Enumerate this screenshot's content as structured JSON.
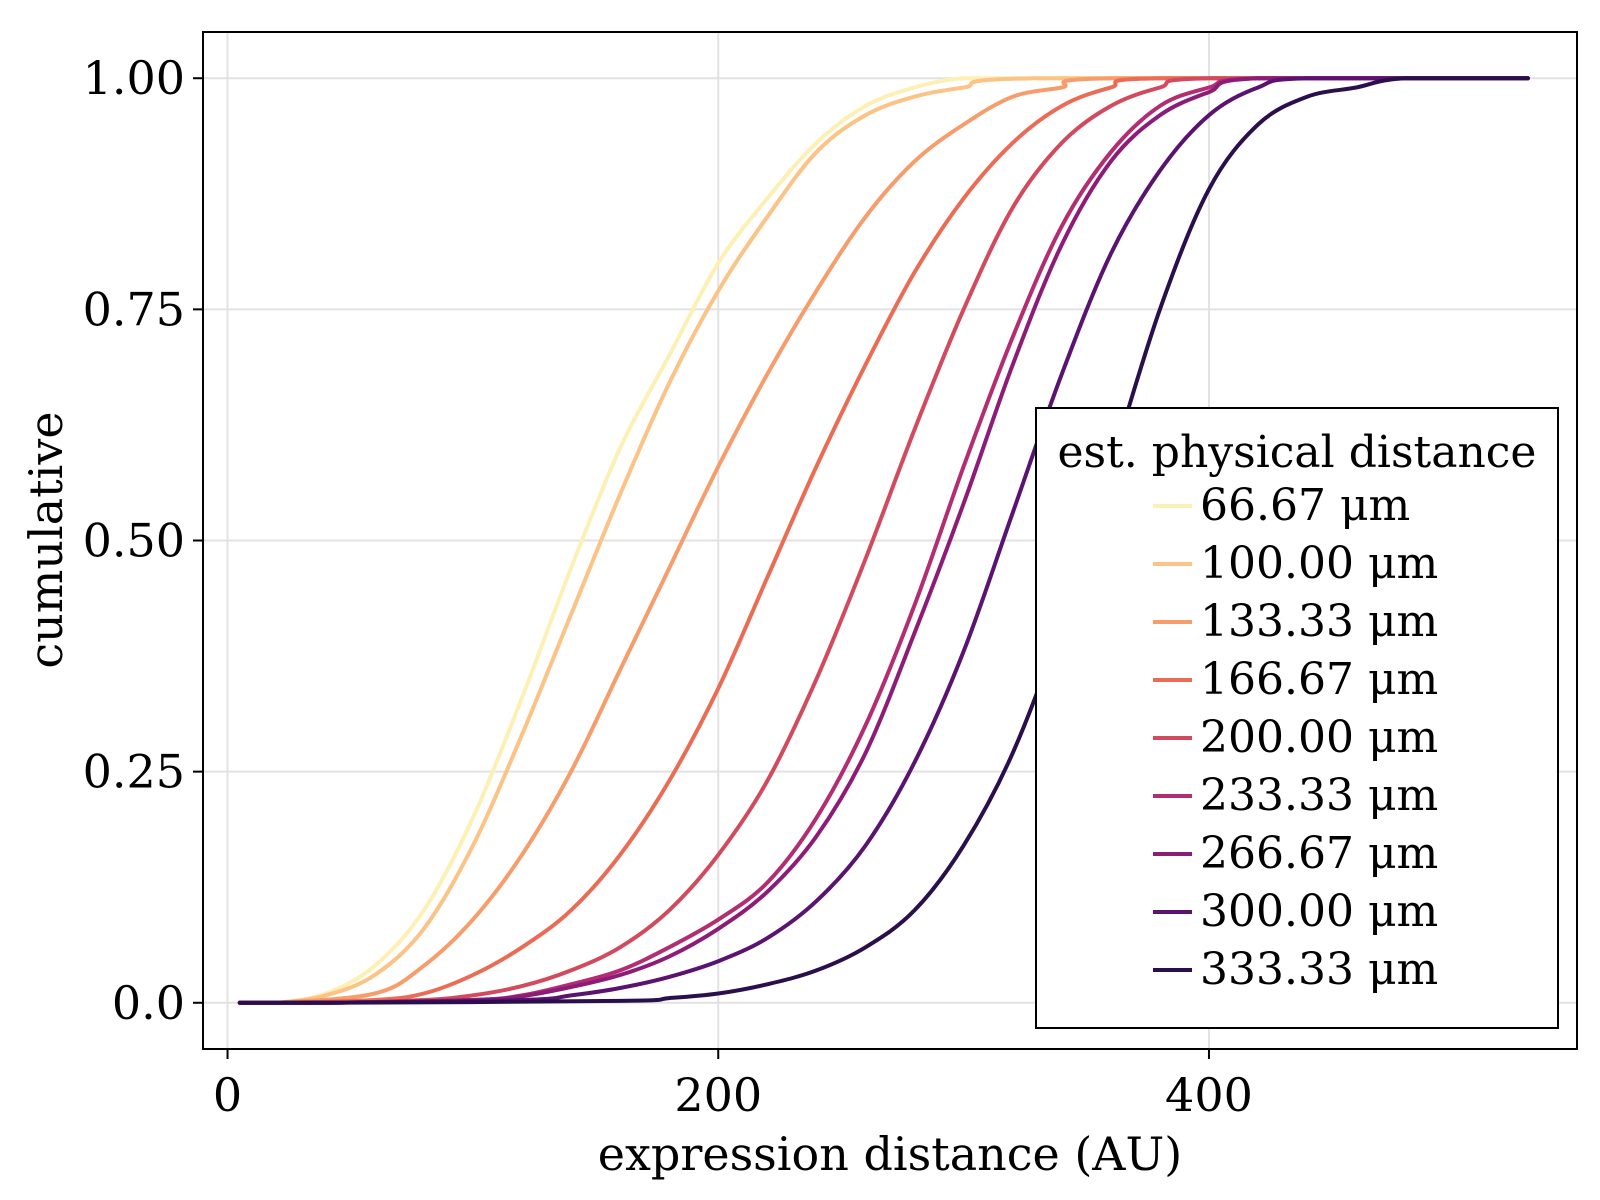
{
  "chart_data": {
    "type": "line",
    "title": "",
    "xlabel": "expression distance (AU)",
    "ylabel": "cumulative",
    "xlim": [
      -10,
      550
    ],
    "ylim": [
      -0.05,
      1.05
    ],
    "x_ticks": [
      0,
      200,
      400
    ],
    "x_tick_labels": [
      "0",
      "200",
      "400"
    ],
    "y_ticks": [
      0.0,
      0.25,
      0.5,
      0.75,
      1.0
    ],
    "y_tick_labels": [
      "0.0",
      "0.25",
      "0.50",
      "0.75",
      "1.00"
    ],
    "grid": true,
    "legend": {
      "title": "est. physical distance",
      "placement": "bottom-right"
    },
    "series": [
      {
        "name": "66.67 μm",
        "color": "#fcf0b4",
        "x_start": 5,
        "x_end": 530,
        "points": [
          [
            20,
            0.0
          ],
          [
            40,
            0.01
          ],
          [
            60,
            0.04
          ],
          [
            80,
            0.1
          ],
          [
            100,
            0.2
          ],
          [
            120,
            0.33
          ],
          [
            140,
            0.47
          ],
          [
            160,
            0.6
          ],
          [
            180,
            0.7
          ],
          [
            200,
            0.8
          ],
          [
            220,
            0.87
          ],
          [
            240,
            0.93
          ],
          [
            260,
            0.97
          ],
          [
            280,
            0.99
          ],
          [
            300,
            1.0
          ],
          [
            330,
            1.0
          ]
        ]
      },
      {
        "name": "100.00 μm",
        "color": "#fbc386",
        "x_start": 5,
        "x_end": 530,
        "points": [
          [
            20,
            0.0
          ],
          [
            40,
            0.008
          ],
          [
            60,
            0.03
          ],
          [
            80,
            0.08
          ],
          [
            100,
            0.17
          ],
          [
            120,
            0.29
          ],
          [
            140,
            0.42
          ],
          [
            160,
            0.55
          ],
          [
            180,
            0.67
          ],
          [
            200,
            0.77
          ],
          [
            220,
            0.85
          ],
          [
            240,
            0.92
          ],
          [
            260,
            0.96
          ],
          [
            280,
            0.98
          ],
          [
            300,
            0.99
          ],
          [
            330,
            1.0
          ]
        ]
      },
      {
        "name": "133.33 μm",
        "color": "#f69d6b",
        "x_start": 5,
        "x_end": 530,
        "points": [
          [
            20,
            0.0
          ],
          [
            60,
            0.01
          ],
          [
            80,
            0.04
          ],
          [
            100,
            0.09
          ],
          [
            120,
            0.16
          ],
          [
            140,
            0.25
          ],
          [
            160,
            0.36
          ],
          [
            180,
            0.47
          ],
          [
            200,
            0.58
          ],
          [
            220,
            0.68
          ],
          [
            240,
            0.77
          ],
          [
            260,
            0.85
          ],
          [
            280,
            0.91
          ],
          [
            300,
            0.95
          ],
          [
            320,
            0.98
          ],
          [
            340,
            0.99
          ],
          [
            360,
            1.0
          ]
        ]
      },
      {
        "name": "166.67 μm",
        "color": "#ea6c55",
        "x_start": 5,
        "x_end": 530,
        "points": [
          [
            20,
            0.0
          ],
          [
            60,
            0.003
          ],
          [
            80,
            0.01
          ],
          [
            100,
            0.03
          ],
          [
            120,
            0.06
          ],
          [
            140,
            0.1
          ],
          [
            160,
            0.16
          ],
          [
            180,
            0.24
          ],
          [
            200,
            0.34
          ],
          [
            220,
            0.46
          ],
          [
            240,
            0.58
          ],
          [
            260,
            0.69
          ],
          [
            280,
            0.79
          ],
          [
            300,
            0.87
          ],
          [
            320,
            0.93
          ],
          [
            340,
            0.97
          ],
          [
            360,
            0.99
          ],
          [
            380,
            1.0
          ]
        ]
      },
      {
        "name": "200.00 μm",
        "color": "#d24a5d",
        "x_start": 5,
        "x_end": 530,
        "points": [
          [
            40,
            0.0
          ],
          [
            80,
            0.003
          ],
          [
            100,
            0.008
          ],
          [
            120,
            0.018
          ],
          [
            140,
            0.035
          ],
          [
            160,
            0.06
          ],
          [
            180,
            0.1
          ],
          [
            200,
            0.16
          ],
          [
            220,
            0.24
          ],
          [
            240,
            0.35
          ],
          [
            260,
            0.48
          ],
          [
            280,
            0.62
          ],
          [
            300,
            0.75
          ],
          [
            320,
            0.86
          ],
          [
            340,
            0.93
          ],
          [
            360,
            0.97
          ],
          [
            380,
            0.99
          ],
          [
            400,
            1.0
          ]
        ]
      },
      {
        "name": "233.33 μm",
        "color": "#b32d71",
        "x_start": 5,
        "x_end": 530,
        "points": [
          [
            40,
            0.0
          ],
          [
            100,
            0.003
          ],
          [
            120,
            0.008
          ],
          [
            140,
            0.02
          ],
          [
            160,
            0.035
          ],
          [
            180,
            0.06
          ],
          [
            200,
            0.09
          ],
          [
            220,
            0.13
          ],
          [
            240,
            0.2
          ],
          [
            260,
            0.3
          ],
          [
            280,
            0.43
          ],
          [
            300,
            0.58
          ],
          [
            320,
            0.72
          ],
          [
            340,
            0.84
          ],
          [
            360,
            0.92
          ],
          [
            380,
            0.97
          ],
          [
            400,
            0.99
          ],
          [
            420,
            1.0
          ]
        ]
      },
      {
        "name": "266.67 μm",
        "color": "#8d1c79",
        "x_start": 5,
        "x_end": 530,
        "points": [
          [
            40,
            0.0
          ],
          [
            100,
            0.003
          ],
          [
            120,
            0.007
          ],
          [
            140,
            0.017
          ],
          [
            160,
            0.03
          ],
          [
            180,
            0.05
          ],
          [
            200,
            0.08
          ],
          [
            220,
            0.12
          ],
          [
            240,
            0.18
          ],
          [
            260,
            0.27
          ],
          [
            280,
            0.4
          ],
          [
            300,
            0.54
          ],
          [
            320,
            0.69
          ],
          [
            340,
            0.82
          ],
          [
            360,
            0.91
          ],
          [
            380,
            0.96
          ],
          [
            400,
            0.985
          ],
          [
            420,
            1.0
          ]
        ]
      },
      {
        "name": "300.00 μm",
        "color": "#5a1470",
        "x_start": 5,
        "x_end": 530,
        "points": [
          [
            40,
            0.0
          ],
          [
            120,
            0.003
          ],
          [
            140,
            0.008
          ],
          [
            160,
            0.016
          ],
          [
            180,
            0.028
          ],
          [
            200,
            0.045
          ],
          [
            220,
            0.07
          ],
          [
            240,
            0.11
          ],
          [
            260,
            0.17
          ],
          [
            280,
            0.26
          ],
          [
            300,
            0.38
          ],
          [
            320,
            0.53
          ],
          [
            340,
            0.68
          ],
          [
            360,
            0.81
          ],
          [
            380,
            0.9
          ],
          [
            400,
            0.96
          ],
          [
            420,
            0.99
          ],
          [
            440,
            1.0
          ]
        ]
      },
      {
        "name": "333.33 μm",
        "color": "#2b0f4c",
        "x_start": 5,
        "x_end": 530,
        "points": [
          [
            40,
            0.0
          ],
          [
            160,
            0.002
          ],
          [
            180,
            0.005
          ],
          [
            200,
            0.01
          ],
          [
            220,
            0.02
          ],
          [
            240,
            0.035
          ],
          [
            260,
            0.06
          ],
          [
            280,
            0.1
          ],
          [
            300,
            0.17
          ],
          [
            320,
            0.27
          ],
          [
            340,
            0.41
          ],
          [
            360,
            0.58
          ],
          [
            380,
            0.75
          ],
          [
            400,
            0.88
          ],
          [
            420,
            0.95
          ],
          [
            440,
            0.98
          ],
          [
            460,
            0.99
          ],
          [
            480,
            1.0
          ]
        ]
      }
    ]
  }
}
